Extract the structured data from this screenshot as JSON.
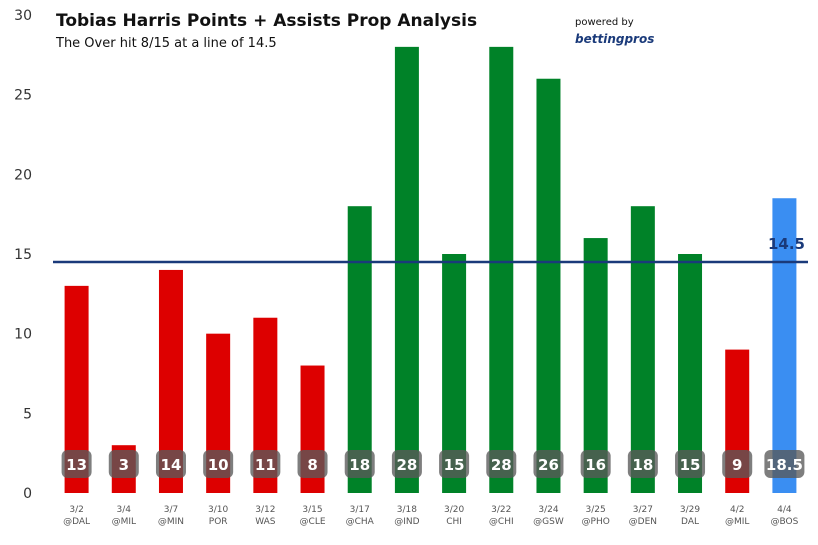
{
  "chart_data": {
    "type": "bar",
    "title": "Tobias Harris Points + Assists Prop Analysis",
    "subtitle": "The Over hit 8/15 at a line of 14.5",
    "powered_by": "powered by",
    "brand": "bettingpros",
    "line": 14.5,
    "line_label": "14.5",
    "ylim": [
      0,
      30
    ],
    "yticks": [
      0,
      5,
      10,
      15,
      20,
      25,
      30
    ],
    "categories": [
      [
        "3/2",
        "@DAL"
      ],
      [
        "3/4",
        "@MIL"
      ],
      [
        "3/7",
        "@MIN"
      ],
      [
        "3/10",
        "POR"
      ],
      [
        "3/12",
        "WAS"
      ],
      [
        "3/15",
        "@CLE"
      ],
      [
        "3/17",
        "@CHA"
      ],
      [
        "3/18",
        "@IND"
      ],
      [
        "3/20",
        "CHI"
      ],
      [
        "3/22",
        "@CHI"
      ],
      [
        "3/24",
        "@GSW"
      ],
      [
        "3/25",
        "@PHO"
      ],
      [
        "3/27",
        "@DEN"
      ],
      [
        "3/29",
        "DAL"
      ],
      [
        "4/2",
        "@MIL"
      ],
      [
        "4/4",
        "@BOS"
      ]
    ],
    "values": [
      13,
      3,
      14,
      10,
      11,
      8,
      18,
      28,
      15,
      28,
      26,
      16,
      18,
      15,
      9,
      18.5
    ],
    "value_labels": [
      "13",
      "3",
      "14",
      "10",
      "11",
      "8",
      "18",
      "28",
      "15",
      "28",
      "26",
      "16",
      "18",
      "15",
      "9",
      "18.5"
    ],
    "status": [
      "under",
      "under",
      "under",
      "under",
      "under",
      "under",
      "over",
      "over",
      "over",
      "over",
      "over",
      "over",
      "over",
      "over",
      "under",
      "projection"
    ],
    "colors": {
      "under": "#dd0000",
      "over": "#008228",
      "projection": "#3a8ef2",
      "line": "#1a3a7a",
      "label_bg": "#5a5a5a"
    }
  }
}
